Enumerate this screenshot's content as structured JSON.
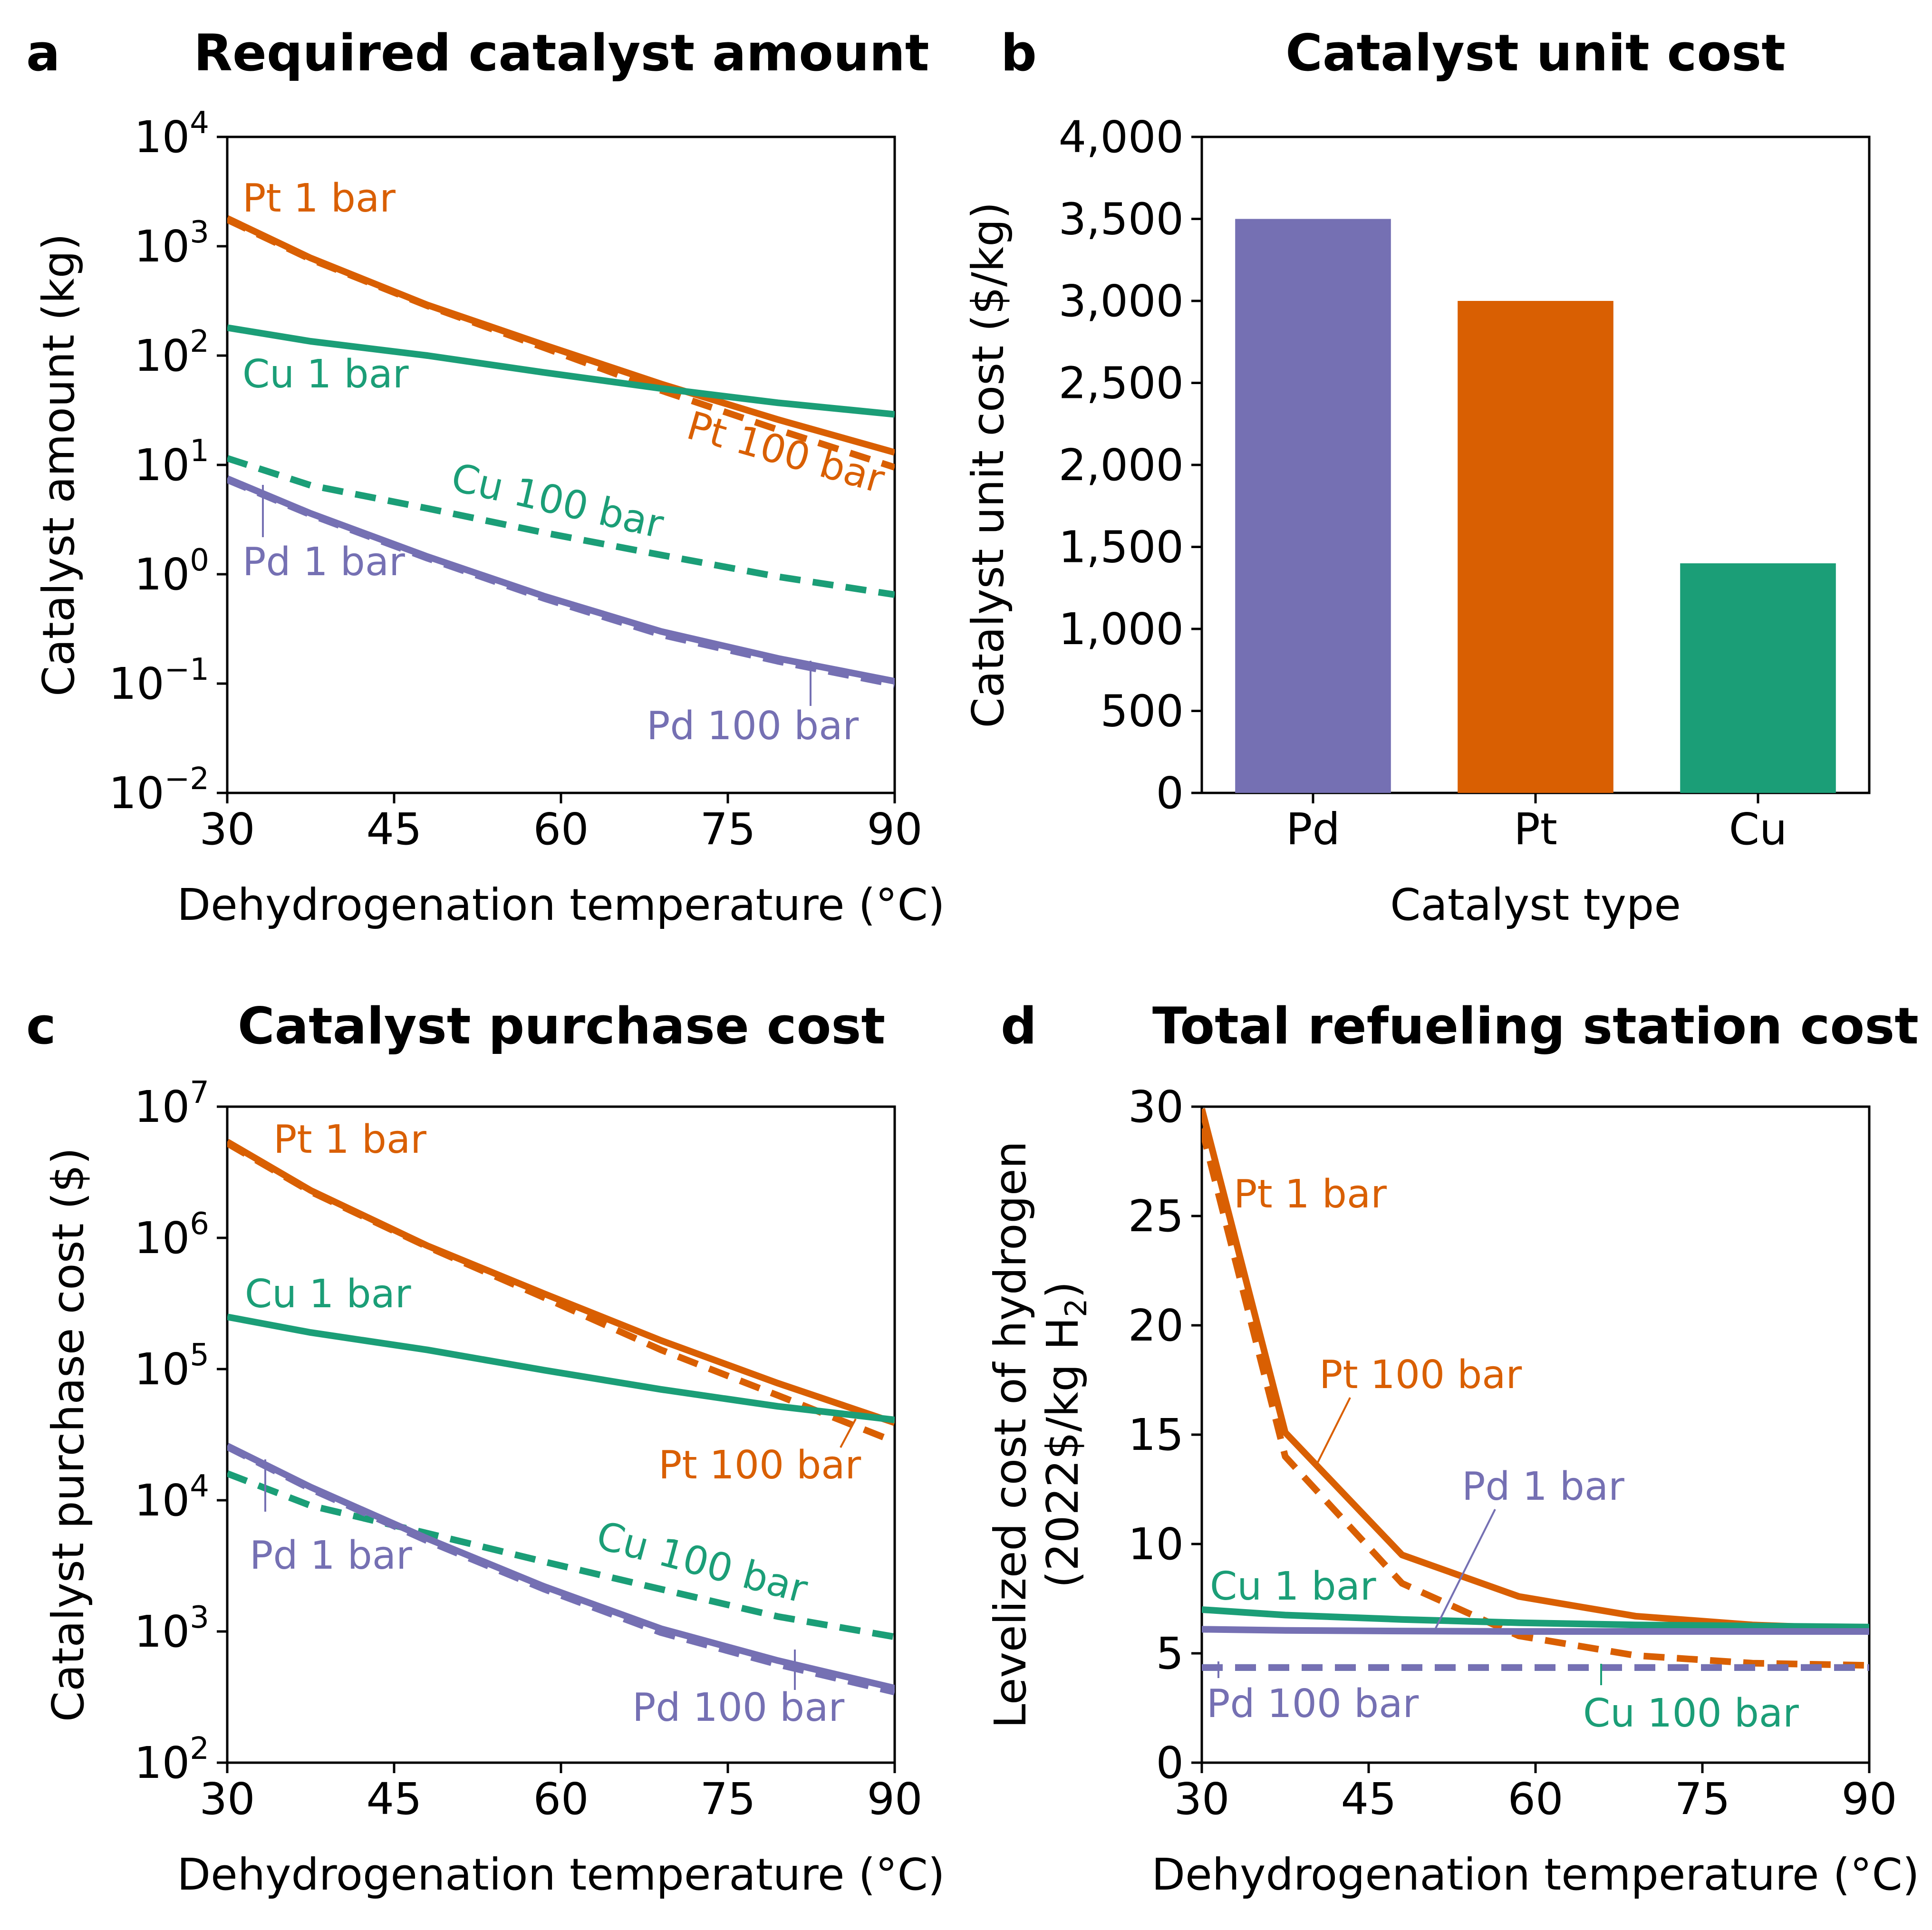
{
  "colors": {
    "pd": "#7570b3",
    "pt": "#d95f02",
    "cu": "#1b9e77",
    "axis": "#000000"
  },
  "chart_data": [
    {
      "panel": "a",
      "type": "line",
      "title": "Required catalyst amount",
      "xlabel": "Dehydrogenation temperature (°C)",
      "ylabel": "Catalyst amount (kg)",
      "xlim": [
        30,
        90
      ],
      "ylim": [
        0.01,
        10000
      ],
      "yscale": "log",
      "xticks": [
        30,
        45,
        60,
        75,
        90
      ],
      "xticklabels": [
        "30",
        "45",
        "60",
        "75",
        "90"
      ],
      "yticks": [
        0.01,
        0.1,
        1,
        10,
        100,
        1000,
        10000
      ],
      "ytick_base": "10",
      "ytick_exponents": [
        "−2",
        "−1",
        "0",
        "1",
        "2",
        "3",
        "4"
      ],
      "x": [
        30,
        37.5,
        48,
        58.5,
        69,
        79.5,
        90
      ],
      "series": [
        {
          "name": "Pt 1 bar",
          "metal": "pt",
          "style": "solid",
          "values": [
            1800,
            780,
            290,
            125,
            55,
            26,
            13
          ]
        },
        {
          "name": "Pt 100 bar",
          "metal": "pt",
          "style": "dashed",
          "values": [
            1750,
            760,
            285,
            118,
            48,
            21,
            9.5
          ]
        },
        {
          "name": "Cu 1 bar",
          "metal": "cu",
          "style": "solid",
          "values": [
            180,
            135,
            100,
            70,
            50,
            37,
            29
          ]
        },
        {
          "name": "Cu 100 bar",
          "metal": "cu",
          "style": "dashed",
          "values": [
            11.5,
            6.5,
            4.0,
            2.4,
            1.5,
            0.95,
            0.65
          ]
        },
        {
          "name": "Pd 1 bar",
          "metal": "pd",
          "style": "solid",
          "values": [
            7.5,
            3.6,
            1.45,
            0.63,
            0.3,
            0.17,
            0.105
          ]
        },
        {
          "name": "Pd 100 bar",
          "metal": "pd",
          "style": "dashed",
          "values": [
            7.3,
            3.5,
            1.4,
            0.6,
            0.28,
            0.16,
            0.098
          ]
        }
      ]
    },
    {
      "panel": "b",
      "type": "bar",
      "title": "Catalyst unit cost",
      "xlabel": "Catalyst type",
      "ylabel": "Catalyst unit cost ($/kg)",
      "ylim": [
        0,
        4000
      ],
      "yticks": [
        0,
        500,
        1000,
        1500,
        2000,
        2500,
        3000,
        3500,
        4000
      ],
      "yticklabels": [
        "0",
        "500",
        "1,000",
        "1,500",
        "2,000",
        "2,500",
        "3,000",
        "3,500",
        "4,000"
      ],
      "categories": [
        "Pd",
        "Pt",
        "Cu"
      ],
      "metals": [
        "pd",
        "pt",
        "cu"
      ],
      "values": [
        3500,
        3000,
        1400
      ]
    },
    {
      "panel": "c",
      "type": "line",
      "title": "Catalyst purchase cost",
      "xlabel": "Dehydrogenation temperature (°C)",
      "ylabel": "Catalyst purchase cost ($)",
      "xlim": [
        30,
        90
      ],
      "ylim": [
        100,
        10000000
      ],
      "yscale": "log",
      "xticks": [
        30,
        45,
        60,
        75,
        90
      ],
      "xticklabels": [
        "30",
        "45",
        "60",
        "75",
        "90"
      ],
      "yticks": [
        100,
        1000,
        10000,
        100000,
        1000000,
        10000000
      ],
      "ytick_base": "10",
      "ytick_exponents": [
        "2",
        "3",
        "4",
        "5",
        "6",
        "7"
      ],
      "x": [
        30,
        37.5,
        48,
        58.5,
        69,
        79.5,
        90
      ],
      "series": [
        {
          "name": "Pt 1 bar",
          "metal": "pt",
          "style": "solid",
          "values": [
            5400000,
            2300000,
            870000,
            375000,
            165000,
            78000,
            39000
          ]
        },
        {
          "name": "Pt 100 bar",
          "metal": "pt",
          "style": "dashed",
          "values": [
            5250000,
            2250000,
            855000,
            350000,
            140000,
            63000,
            28000
          ]
        },
        {
          "name": "Cu 1 bar",
          "metal": "cu",
          "style": "solid",
          "values": [
            250000,
            190000,
            140000,
            98000,
            70000,
            52000,
            41000
          ]
        },
        {
          "name": "Cu 100 bar",
          "metal": "cu",
          "style": "dashed",
          "values": [
            16000,
            9100,
            5600,
            3400,
            2100,
            1300,
            910
          ]
        },
        {
          "name": "Pd 1 bar",
          "metal": "pd",
          "style": "solid",
          "values": [
            26000,
            12600,
            5100,
            2200,
            1050,
            600,
            370
          ]
        },
        {
          "name": "Pd 100 bar",
          "metal": "pd",
          "style": "dashed",
          "values": [
            25500,
            12200,
            4900,
            2100,
            980,
            560,
            345
          ]
        }
      ]
    },
    {
      "panel": "d",
      "type": "line",
      "title": "Total refueling station cost",
      "xlabel": "Dehydrogenation temperature (°C)",
      "ylabel_line1": "Levelized cost of hydrogen",
      "ylabel_line2_prefix": "(2022$/kg H",
      "ylabel_line2_sub": "2",
      "ylabel_line2_suffix": ")",
      "xlim": [
        30,
        90
      ],
      "ylim": [
        0,
        30
      ],
      "xticks": [
        30,
        45,
        60,
        75,
        90
      ],
      "xticklabels": [
        "30",
        "45",
        "60",
        "75",
        "90"
      ],
      "yticks": [
        0,
        5,
        10,
        15,
        20,
        25,
        30
      ],
      "yticklabels": [
        "0",
        "5",
        "10",
        "15",
        "20",
        "25",
        "30"
      ],
      "x": [
        30,
        37.5,
        48,
        58.5,
        69,
        79.5,
        90
      ],
      "series": [
        {
          "name": "Pt 1 bar",
          "metal": "pt",
          "style": "solid",
          "values": [
            29.9,
            15.1,
            9.5,
            7.6,
            6.7,
            6.3,
            6.1
          ]
        },
        {
          "name": "Pt 100 bar",
          "metal": "pt",
          "style": "dashed",
          "values": [
            29.0,
            14.0,
            8.2,
            5.8,
            4.9,
            4.55,
            4.45
          ]
        },
        {
          "name": "Cu 1 bar",
          "metal": "cu",
          "style": "solid",
          "values": [
            7.0,
            6.75,
            6.55,
            6.4,
            6.3,
            6.25,
            6.2
          ]
        },
        {
          "name": "Cu 100 bar",
          "metal": "cu",
          "style": "dashed",
          "values": [
            4.35,
            4.35,
            4.35,
            4.35,
            4.35,
            4.35,
            4.35
          ]
        },
        {
          "name": "Pd 1 bar",
          "metal": "pd",
          "style": "solid",
          "values": [
            6.1,
            6.05,
            6.02,
            6.0,
            6.0,
            6.0,
            6.0
          ]
        },
        {
          "name": "Pd 100 bar",
          "metal": "pd",
          "style": "dashed",
          "values": [
            4.35,
            4.35,
            4.35,
            4.35,
            4.35,
            4.35,
            4.35
          ]
        }
      ]
    }
  ]
}
